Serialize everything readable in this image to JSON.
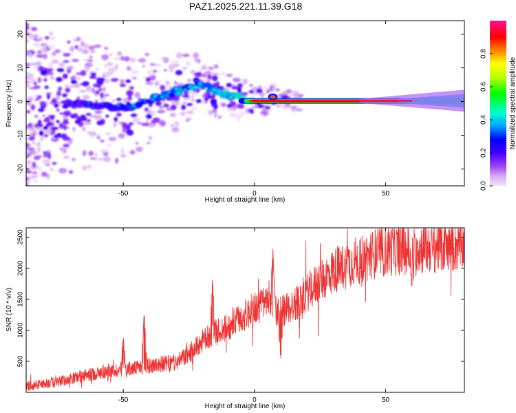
{
  "title": "PAZ1.2025.221.11.39.G18",
  "chart_data": [
    {
      "type": "heatmap",
      "xlabel": "Height of straight line (km)",
      "ylabel": "Frequency (Hz)",
      "xlim": [
        -87,
        80
      ],
      "ylim": [
        -25,
        24
      ],
      "x_ticks": [
        -50,
        0,
        50
      ],
      "y_ticks": [
        -20,
        -10,
        0,
        10,
        20
      ],
      "colorbar": {
        "label": "Normalized spectral amplitude",
        "range": [
          0,
          1
        ],
        "ticks": [
          0.0,
          0.2,
          0.4,
          0.6,
          0.8
        ]
      },
      "ridge": [
        {
          "x": -70,
          "y": -1
        },
        {
          "x": -62,
          "y": -1
        },
        {
          "x": -55,
          "y": -1.5
        },
        {
          "x": -50,
          "y": -2
        },
        {
          "x": -45,
          "y": -1
        },
        {
          "x": -40,
          "y": 0.5
        },
        {
          "x": -35,
          "y": 2
        },
        {
          "x": -30,
          "y": 3
        },
        {
          "x": -25,
          "y": 4
        },
        {
          "x": -20,
          "y": 5
        },
        {
          "x": -15,
          "y": 3
        },
        {
          "x": -10,
          "y": 2
        },
        {
          "x": -5,
          "y": 0.8
        },
        {
          "x": 0,
          "y": 0.3
        },
        {
          "x": 5,
          "y": 0.2
        },
        {
          "x": 7,
          "y": 1.6
        },
        {
          "x": 10,
          "y": 0.3
        },
        {
          "x": 30,
          "y": 0.1
        },
        {
          "x": 60,
          "y": 0.1
        },
        {
          "x": 80,
          "y": 0.2
        }
      ],
      "colormap": [
        "#f3e3fb",
        "#d9b2f2",
        "#a050f0",
        "#6a00f0",
        "#0000ff",
        "#00c8ff",
        "#00ffa0",
        "#00ff00",
        "#ffff00",
        "#ff8000",
        "#ff0000",
        "#ff1090"
      ]
    },
    {
      "type": "line",
      "xlabel": "Height of straight line (km)",
      "ylabel": "SNR (10 * v/v)",
      "xlim": [
        -87,
        80
      ],
      "ylim": [
        0,
        2650
      ],
      "x_ticks": [
        -50,
        0,
        50
      ],
      "y_ticks": [
        500,
        1000,
        1500,
        2000,
        2500
      ],
      "color": "#ee3333",
      "trend": [
        {
          "x": -87,
          "y": 100
        },
        {
          "x": -75,
          "y": 170
        },
        {
          "x": -65,
          "y": 270
        },
        {
          "x": -55,
          "y": 340
        },
        {
          "x": -45,
          "y": 390
        },
        {
          "x": -35,
          "y": 460
        },
        {
          "x": -30,
          "y": 470
        },
        {
          "x": -25,
          "y": 620
        },
        {
          "x": -20,
          "y": 820
        },
        {
          "x": -15,
          "y": 960
        },
        {
          "x": -10,
          "y": 1050
        },
        {
          "x": -5,
          "y": 1200
        },
        {
          "x": 0,
          "y": 1350
        },
        {
          "x": 5,
          "y": 1450
        },
        {
          "x": 10,
          "y": 1300
        },
        {
          "x": 15,
          "y": 1400
        },
        {
          "x": 20,
          "y": 1600
        },
        {
          "x": 25,
          "y": 1800
        },
        {
          "x": 30,
          "y": 1950
        },
        {
          "x": 40,
          "y": 2150
        },
        {
          "x": 50,
          "y": 2280
        },
        {
          "x": 60,
          "y": 2320
        },
        {
          "x": 70,
          "y": 2350
        },
        {
          "x": 80,
          "y": 2380
        }
      ],
      "notable_points": [
        {
          "x": -50,
          "y": 900
        },
        {
          "x": -42,
          "y": 1320
        },
        {
          "x": -16,
          "y": 1870
        },
        {
          "x": 7,
          "y": 2320
        },
        {
          "x": 10,
          "y": 510
        },
        {
          "x": 40,
          "y": 1750
        },
        {
          "x": 60,
          "y": 1680
        }
      ]
    }
  ]
}
